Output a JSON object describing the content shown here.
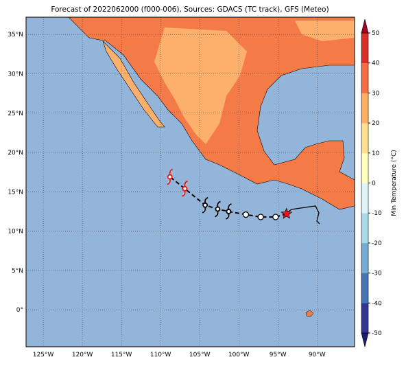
{
  "chart_data": {
    "type": "map",
    "title": "Forecast of 2022062000 (f000-006), Sources: GDACS (TC track), GFS (Meteo)",
    "xlim": [
      -127.2,
      -85.2
    ],
    "ylim": [
      -4.7,
      37.2
    ],
    "xticks": [
      {
        "value": -125,
        "label": "125°W"
      },
      {
        "value": -120,
        "label": "120°W"
      },
      {
        "value": -115,
        "label": "115°W"
      },
      {
        "value": -110,
        "label": "110°W"
      },
      {
        "value": -105,
        "label": "105°W"
      },
      {
        "value": -100,
        "label": "100°W"
      },
      {
        "value": -95,
        "label": "95°W"
      },
      {
        "value": -90,
        "label": "90°W"
      }
    ],
    "yticks": [
      {
        "value": 0,
        "label": "0°"
      },
      {
        "value": 5,
        "label": "5°N"
      },
      {
        "value": 10,
        "label": "10°N"
      },
      {
        "value": 15,
        "label": "15°N"
      },
      {
        "value": 20,
        "label": "20°N"
      },
      {
        "value": 25,
        "label": "25°N"
      },
      {
        "value": 30,
        "label": "30°N"
      },
      {
        "value": 35,
        "label": "35°N"
      }
    ],
    "grid": true,
    "track": {
      "x": [
        -93.9,
        -95.3,
        -97.2,
        -99.1,
        -101.3,
        -102.7,
        -104.3,
        -106.9,
        -108.8
      ],
      "y": [
        12.2,
        11.8,
        11.8,
        12.1,
        12.5,
        12.8,
        13.3,
        15.4,
        16.9
      ]
    },
    "colorbar": {
      "label": "Min Temperature (°C)",
      "ylim": [
        -50,
        50
      ],
      "yticks": [
        -50,
        -40,
        -30,
        -20,
        -10,
        0,
        10,
        20,
        30,
        40,
        50
      ],
      "colors": [
        "#313695",
        "#4575b4",
        "#74add1",
        "#abd9e9",
        "#e0f3f8",
        "#ffffbf",
        "#fee090",
        "#fdae61",
        "#f46d43",
        "#d73027"
      ],
      "extend_colors": [
        "#1b1f6e",
        "#a50026"
      ]
    }
  }
}
